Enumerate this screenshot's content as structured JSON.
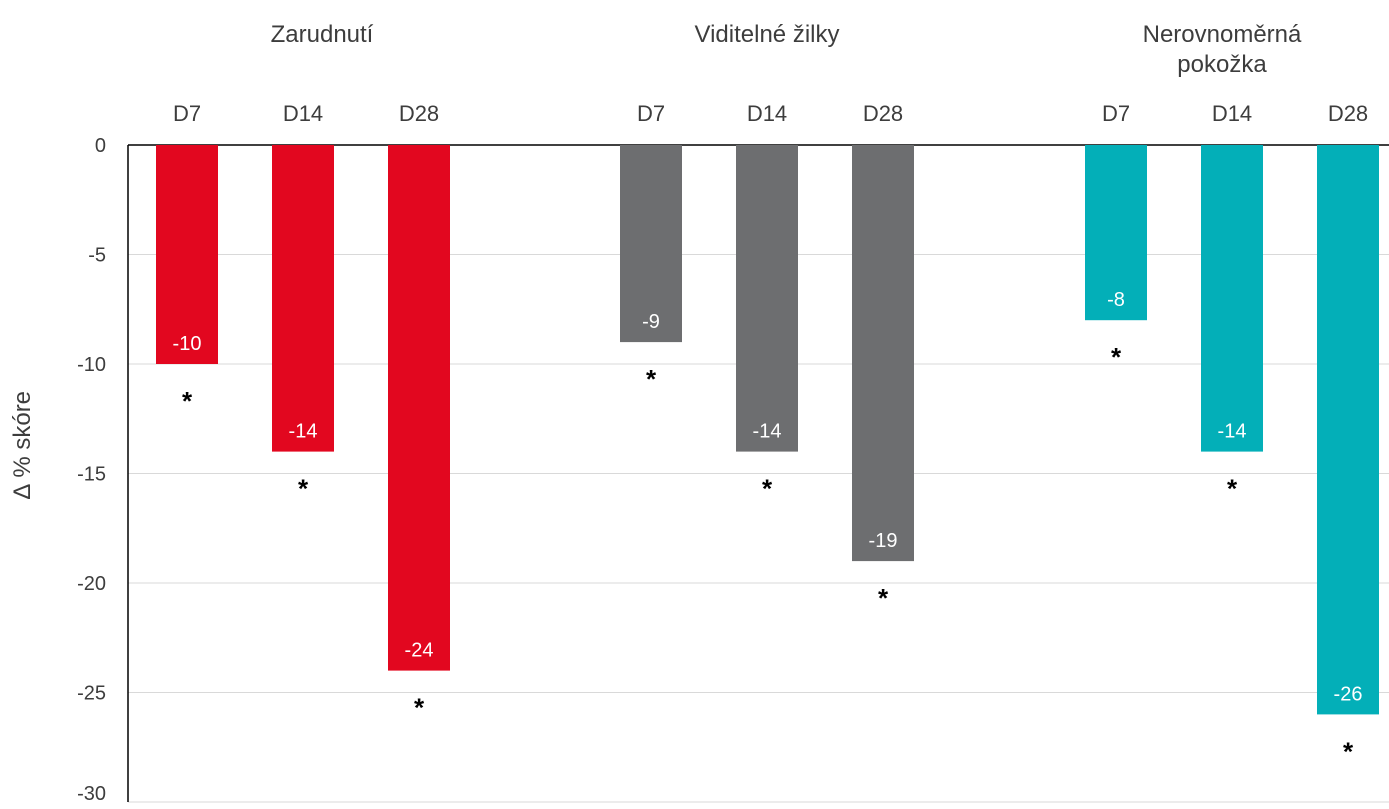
{
  "chart_data": {
    "type": "bar",
    "ylabel": "∆ % skóre",
    "ylim": [
      -30,
      0
    ],
    "yticks": [
      0,
      -5,
      -10,
      -15,
      -20,
      -25,
      -30
    ],
    "grid": true,
    "groups": [
      {
        "name": "Zarudnutí",
        "title_lines": [
          "Zarudnutí"
        ],
        "color": "#e2071f",
        "categories": [
          "D7",
          "D14",
          "D28"
        ],
        "values": [
          -10,
          -14,
          -24
        ],
        "value_labels": [
          "-10",
          "-14",
          "-24"
        ],
        "significance": [
          "*",
          "*",
          "*"
        ]
      },
      {
        "name": "Viditelné žilky",
        "title_lines": [
          "Viditelné žilky"
        ],
        "color": "#6d6e70",
        "categories": [
          "D7",
          "D14",
          "D28"
        ],
        "values": [
          -9,
          -14,
          -19
        ],
        "value_labels": [
          "-9",
          "-14",
          "-19"
        ],
        "significance": [
          "*",
          "*",
          "*"
        ]
      },
      {
        "name": "Nerovnoměrná pokožka",
        "title_lines": [
          "Nerovnoměrná",
          "pokožka"
        ],
        "color": "#03afb8",
        "categories": [
          "D7",
          "D14",
          "D28"
        ],
        "values": [
          -8,
          -14,
          -26
        ],
        "value_labels": [
          "-8",
          "-14",
          "-26"
        ],
        "significance": [
          "*",
          "*",
          "*"
        ]
      }
    ]
  }
}
